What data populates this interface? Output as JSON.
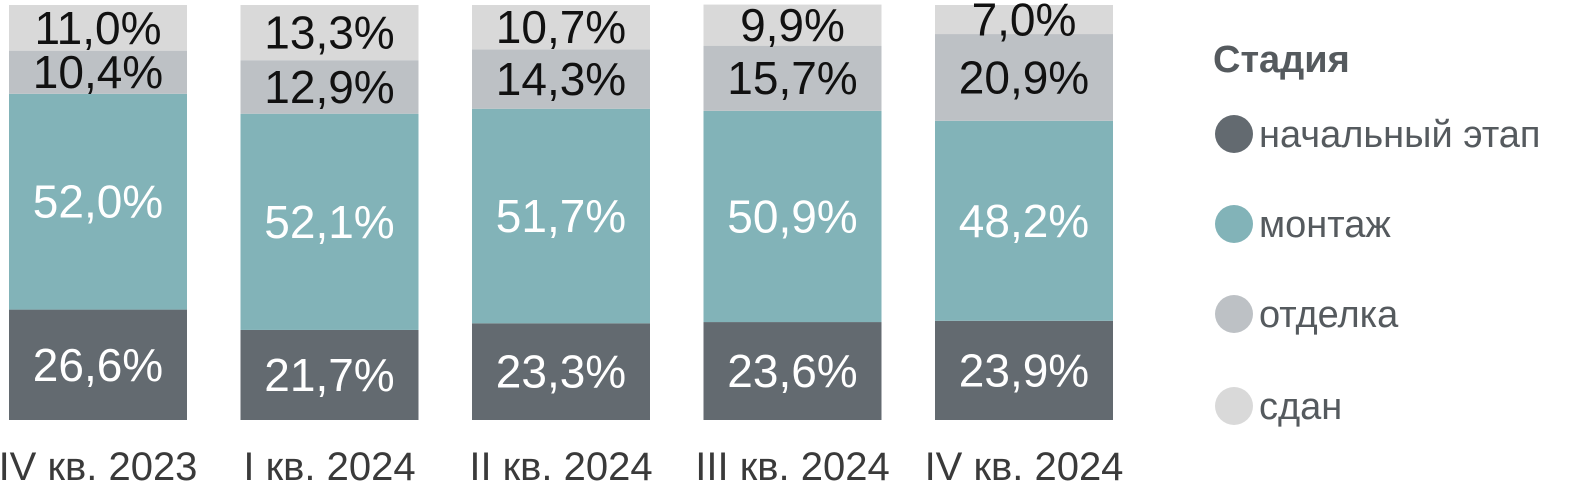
{
  "chart_data": {
    "type": "bar",
    "stacked": true,
    "normalized": true,
    "ylim": [
      0,
      100
    ],
    "value_format": "percent-comma-1",
    "categories": [
      "IV кв. 2023",
      "I кв. 2024",
      "II кв. 2024",
      "III кв. 2024",
      "IV кв. 2024"
    ],
    "legend": {
      "title": "Стадия",
      "position": "right"
    },
    "series": [
      {
        "name": "начальный этап",
        "color": "#636a70",
        "label_color": "#ffffff",
        "values": [
          26.6,
          21.7,
          23.3,
          23.6,
          23.9
        ]
      },
      {
        "name": "монтаж",
        "color": "#82b3b8",
        "label_color": "#ffffff",
        "values": [
          52.0,
          52.1,
          51.7,
          50.9,
          48.2
        ]
      },
      {
        "name": "отделка",
        "color": "#bdc1c5",
        "label_color": "#111111",
        "values": [
          10.4,
          12.9,
          14.3,
          15.7,
          20.9
        ]
      },
      {
        "name": "сдан",
        "color": "#d9d9d9",
        "label_color": "#111111",
        "values": [
          11.0,
          13.3,
          10.7,
          9.9,
          7.0
        ]
      }
    ],
    "data_labels": [
      [
        "26,6%",
        "21,7%",
        "23,3%",
        "23,6%",
        "23,9%"
      ],
      [
        "52,0%",
        "52,1%",
        "51,7%",
        "50,9%",
        "48,2%"
      ],
      [
        "10,4%",
        "12,9%",
        "14,3%",
        "15,7%",
        "20,9%"
      ],
      [
        "11,0%",
        "13,3%",
        "10,7%",
        "9,9%",
        "7,0%"
      ]
    ],
    "grid": false
  }
}
